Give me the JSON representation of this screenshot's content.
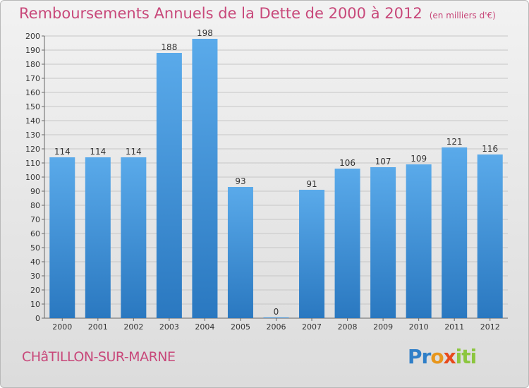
{
  "chart_data": {
    "type": "bar",
    "title": "Remboursements Annuels de la Dette de 2000 à 2012",
    "unit_label": "(en milliers d'€)",
    "categories": [
      "2000",
      "2001",
      "2002",
      "2003",
      "2004",
      "2005",
      "2006",
      "2007",
      "2008",
      "2009",
      "2010",
      "2011",
      "2012"
    ],
    "values": [
      114,
      114,
      114,
      188,
      198,
      93,
      0,
      91,
      106,
      107,
      109,
      121,
      116
    ],
    "ylim": [
      0,
      200
    ],
    "ytick_step": 10,
    "grid": true,
    "bar_color": "#3d8fd6"
  },
  "commune": "CHâTILLON-SUR-MARNE",
  "brand": {
    "p1": "Pr",
    "p2": "o",
    "p3": "x",
    "p4": "iti"
  }
}
